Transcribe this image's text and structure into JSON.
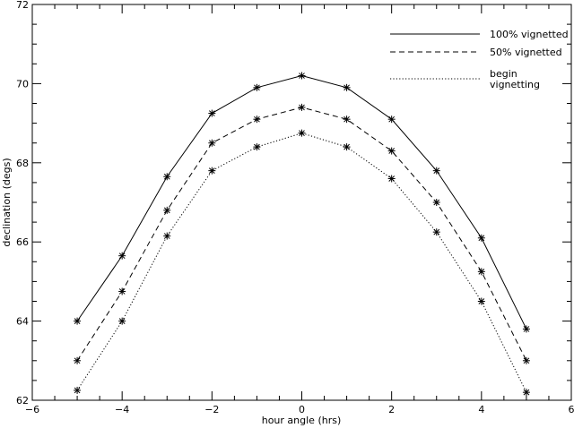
{
  "chart_data": {
    "type": "line",
    "xlabel": "hour angle (hrs)",
    "ylabel": "declination (degs)",
    "xlim": [
      -6,
      6
    ],
    "ylim": [
      62,
      72
    ],
    "x_ticks": [
      "−6",
      "−4",
      "−2",
      "0",
      "2",
      "4",
      "6"
    ],
    "y_ticks": [
      "62",
      "64",
      "66",
      "68",
      "70",
      "72"
    ],
    "x": [
      -5,
      -4,
      -3,
      -2,
      -1,
      0,
      1,
      2,
      3,
      4,
      5
    ],
    "series": [
      {
        "name": "100% vignetted",
        "style": "solid",
        "values": [
          64.0,
          65.65,
          67.65,
          69.25,
          69.9,
          70.2,
          69.9,
          69.1,
          67.8,
          66.1,
          63.8
        ]
      },
      {
        "name": "50% vignetted",
        "style": "dashed",
        "values": [
          63.0,
          64.75,
          66.8,
          68.5,
          69.1,
          69.4,
          69.1,
          68.3,
          67.0,
          65.25,
          63.0
        ]
      },
      {
        "name": "begin vignetting",
        "name_lines": [
          "begin",
          "vignetting"
        ],
        "style": "dotted",
        "values": [
          62.25,
          64.0,
          66.15,
          67.8,
          68.4,
          68.75,
          68.4,
          67.6,
          66.25,
          64.5,
          62.2
        ]
      }
    ],
    "marker": "asterisk",
    "legend_position": "top-right",
    "grid": false
  }
}
